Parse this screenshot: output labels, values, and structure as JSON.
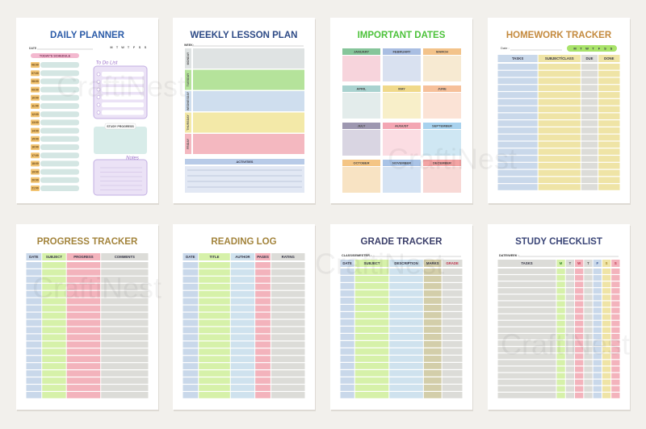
{
  "watermark": "CraftiNest",
  "pages": [
    {
      "title": "DAILY PLANNER",
      "date": "DATE",
      "schedule": "TODAY'S SCHEDULE",
      "todo": "To Do List",
      "progress": "STUDY PROGRESS",
      "notes": "Notes",
      "weekdays": [
        "M",
        "T",
        "W",
        "T",
        "F",
        "S",
        "S"
      ],
      "times": [
        "06:00",
        "07:00",
        "08:00",
        "09:00",
        "10:00",
        "11:00",
        "12:00",
        "13:00",
        "14:00",
        "15:00",
        "16:00",
        "17:00",
        "18:00",
        "19:00",
        "20:00",
        "21:00"
      ]
    },
    {
      "title": "WEEKLY LESSON PLAN",
      "week": "WEEK:",
      "days": [
        "MONDAY",
        "TUESDAY",
        "WEDNESDAY",
        "THURSDAY",
        "FRIDAY"
      ],
      "activities": "ACTIVITIES"
    },
    {
      "title": "IMPORTANT DATES",
      "months": [
        "JANUARY",
        "FEBRUARY",
        "MARCH",
        "APRIL",
        "MAY",
        "JUNE",
        "JULY",
        "AUGUST",
        "SEPTEMBER",
        "OCTOBER",
        "NOVEMBER",
        "DECEMBER"
      ]
    },
    {
      "title": "HOMEWORK TRACKER",
      "date": "Date :",
      "weekdays": [
        "M",
        "T",
        "W",
        "T",
        "F",
        "S",
        "S"
      ],
      "columns": [
        "TASKS",
        "SUBJECT/CLASS",
        "DUE",
        "DONE"
      ]
    },
    {
      "title": "PROGRESS TRACKER",
      "columns": [
        "DATE",
        "SUBJECT",
        "PROGRESS",
        "COMMENTS"
      ]
    },
    {
      "title": "READING LOG",
      "columns": [
        "DATE",
        "TITLE",
        "AUTHOR",
        "PAGES",
        "RATING"
      ]
    },
    {
      "title": "GRADE TRACKER",
      "class": "CLASS/SEMESTER :",
      "columns": [
        "DATE",
        "SUBJECT",
        "DESCRIPTION",
        "MARKS",
        "GRADE"
      ]
    },
    {
      "title": "STUDY CHECKLIST",
      "date": "DATE/WEEK :",
      "columns": [
        "TASKS",
        "M",
        "T",
        "W",
        "T",
        "F",
        "S",
        "S"
      ]
    }
  ]
}
